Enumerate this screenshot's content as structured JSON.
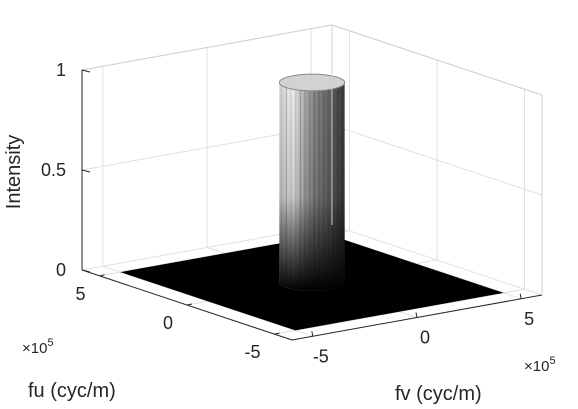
{
  "chart_data": {
    "type": "surface",
    "title": "",
    "zlabel": "Intensity",
    "xlabel": "fu (cyc/m)",
    "ylabel": "fv (cyc/m)",
    "x_exponent": "×10^5",
    "y_exponent": "×10^5",
    "xlim": [
      -6,
      6
    ],
    "ylim": [
      -6,
      6
    ],
    "zlim": [
      0,
      1
    ],
    "x_ticks": [
      {
        "value": 5,
        "label": "5"
      },
      {
        "value": 0,
        "label": "0"
      },
      {
        "value": -5,
        "label": "-5"
      }
    ],
    "y_ticks": [
      {
        "value": -5,
        "label": "-5"
      },
      {
        "value": 0,
        "label": "0"
      },
      {
        "value": 5,
        "label": "5"
      }
    ],
    "z_ticks": [
      {
        "value": 0,
        "label": "0"
      },
      {
        "value": 0.5,
        "label": "0.5"
      },
      {
        "value": 1,
        "label": "1"
      }
    ],
    "surface": {
      "description_shape": "circular pass region (cylinder)",
      "domain_x": [
        -5,
        5
      ],
      "domain_y": [
        -5,
        5
      ],
      "radius": 1.2,
      "value_inside": 1,
      "value_outside": 0
    },
    "colormap": "gray",
    "grid": true,
    "box": "3d-open"
  }
}
